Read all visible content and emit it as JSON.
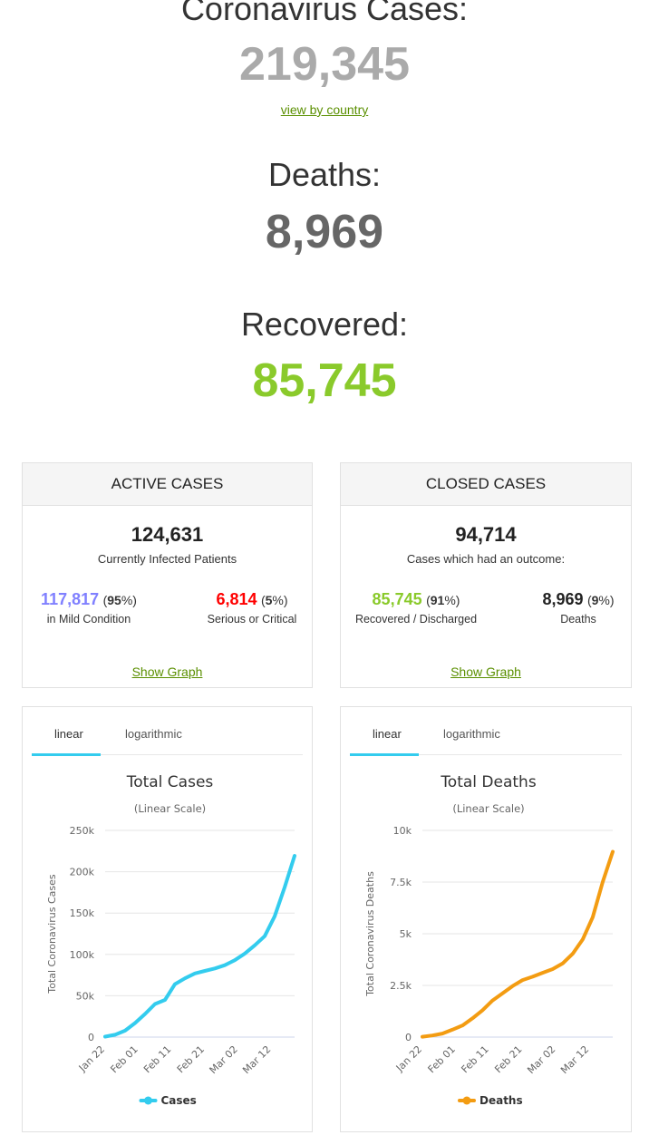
{
  "hero": {
    "cases_label": "Coronavirus Cases:",
    "cases_value": "219,345",
    "view_link": "view by country",
    "deaths_label": "Deaths:",
    "deaths_value": "8,969",
    "recovered_label": "Recovered:",
    "recovered_value": "85,745"
  },
  "colors": {
    "cases_gray": "#aaaaaa",
    "deaths_gray": "#666666",
    "recovered_green": "#8ACA2B",
    "mild_blue": "#8080FF",
    "critical_red": "#FF0000",
    "cases_line": "#33CCEE",
    "deaths_line": "#F39C12"
  },
  "active": {
    "title": "ACTIVE CASES",
    "total": "124,631",
    "total_label": "Currently Infected Patients",
    "mild_value": "117,817",
    "mild_pct": "95",
    "mild_label": "in Mild Condition",
    "critical_value": "6,814",
    "critical_pct": "5",
    "critical_label": "Serious or Critical",
    "show_graph": "Show Graph"
  },
  "closed": {
    "title": "CLOSED CASES",
    "total": "94,714",
    "total_label": "Cases which had an outcome:",
    "recovered_value": "85,745",
    "recovered_pct": "91",
    "recovered_label": "Recovered / Discharged",
    "deaths_value": "8,969",
    "deaths_pct": "9",
    "deaths_label": "Deaths",
    "show_graph": "Show Graph"
  },
  "tabs": {
    "linear": "linear",
    "log": "logarithmic"
  },
  "chart_data": [
    {
      "type": "line",
      "title": "Total Cases",
      "subtitle": "(Linear Scale)",
      "ylabel": "Total Coronavirus Cases",
      "xlabel": "",
      "ylim": [
        0,
        250000
      ],
      "yticks": [
        0,
        50000,
        100000,
        150000,
        200000,
        250000
      ],
      "ytick_labels": [
        "0",
        "50k",
        "100k",
        "150k",
        "200k",
        "250k"
      ],
      "xtick_labels": [
        "Jan 22",
        "Feb 01",
        "Feb 11",
        "Feb 21",
        "Mar 02",
        "Mar 12"
      ],
      "xtick_positions": [
        0,
        10,
        20,
        30,
        40,
        50
      ],
      "x_count": 58,
      "grid": true,
      "legend": "bottom",
      "series": [
        {
          "name": "Cases",
          "color": "#33CCEE",
          "points": [
            [
              0,
              580
            ],
            [
              3,
              2900
            ],
            [
              6,
              7800
            ],
            [
              9,
              17000
            ],
            [
              12,
              28000
            ],
            [
              15,
              40000
            ],
            [
              18,
              45000
            ],
            [
              21,
              64000
            ],
            [
              24,
              71000
            ],
            [
              27,
              77000
            ],
            [
              30,
              80000
            ],
            [
              33,
              83000
            ],
            [
              36,
              87000
            ],
            [
              39,
              93000
            ],
            [
              42,
              101000
            ],
            [
              45,
              111000
            ],
            [
              48,
              122000
            ],
            [
              51,
              146000
            ],
            [
              54,
              181000
            ],
            [
              57,
              219345
            ]
          ]
        }
      ]
    },
    {
      "type": "line",
      "title": "Total Deaths",
      "subtitle": "(Linear Scale)",
      "ylabel": "Total Coronavirus Deaths",
      "xlabel": "",
      "ylim": [
        0,
        10000
      ],
      "yticks": [
        0,
        2500,
        5000,
        7500,
        10000
      ],
      "ytick_labels": [
        "0",
        "2.5k",
        "5k",
        "7.5k",
        "10k"
      ],
      "xtick_labels": [
        "Jan 22",
        "Feb 01",
        "Feb 11",
        "Feb 21",
        "Mar 02",
        "Mar 12"
      ],
      "xtick_positions": [
        0,
        10,
        20,
        30,
        40,
        50
      ],
      "x_count": 58,
      "grid": true,
      "legend": "bottom",
      "series": [
        {
          "name": "Deaths",
          "color": "#F39C12",
          "points": [
            [
              0,
              17
            ],
            [
              3,
              81
            ],
            [
              6,
              170
            ],
            [
              9,
              360
            ],
            [
              12,
              560
            ],
            [
              15,
              910
            ],
            [
              18,
              1300
            ],
            [
              21,
              1770
            ],
            [
              24,
              2120
            ],
            [
              27,
              2470
            ],
            [
              30,
              2760
            ],
            [
              33,
              2920
            ],
            [
              36,
              3110
            ],
            [
              39,
              3290
            ],
            [
              42,
              3560
            ],
            [
              45,
              4030
            ],
            [
              48,
              4720
            ],
            [
              51,
              5800
            ],
            [
              54,
              7500
            ],
            [
              57,
              8969
            ]
          ]
        }
      ]
    }
  ]
}
